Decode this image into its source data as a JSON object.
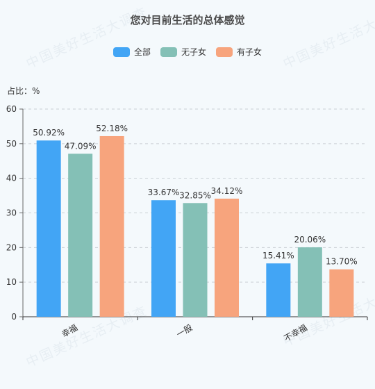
{
  "chart_data": {
    "type": "bar",
    "title": "您对目前生活的总体感觉",
    "unit_label": "占比：%",
    "categories": [
      "幸福",
      "一般",
      "不幸福"
    ],
    "series": [
      {
        "name": "全部",
        "color": "#42a5f5",
        "values": [
          50.92,
          33.67,
          15.41
        ],
        "labels": [
          "50.92%",
          "33.67%",
          "15.41%"
        ]
      },
      {
        "name": "无子女",
        "color": "#84c0b6",
        "values": [
          47.09,
          32.85,
          20.06
        ],
        "labels": [
          "47.09%",
          "32.85%",
          "20.06%"
        ]
      },
      {
        "name": "有子女",
        "color": "#f7a47d",
        "values": [
          52.18,
          34.12,
          13.7
        ],
        "labels": [
          "52.18%",
          "34.12%",
          "13.70%"
        ]
      }
    ],
    "ylim": [
      0,
      60
    ],
    "yticks": [
      0,
      10,
      20,
      30,
      40,
      50,
      60
    ],
    "grid": true,
    "legend_position": "top-center"
  },
  "watermark": "中国美好生活大调查"
}
